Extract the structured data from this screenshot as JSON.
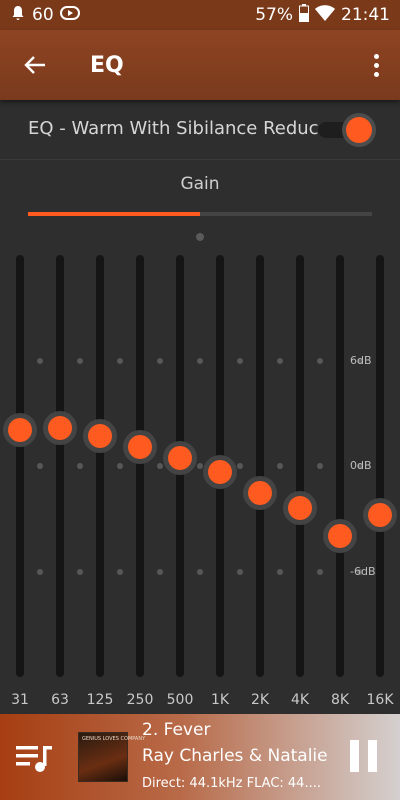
{
  "status_bar": {
    "notification_count": "60",
    "battery": "57%",
    "time": "21:41"
  },
  "app_bar": {
    "title": "EQ",
    "back_icon": "arrow-left-icon",
    "menu_icon": "more-vert-icon"
  },
  "preset": {
    "name": "EQ - Warm With Sibilance Reduct",
    "enabled": true
  },
  "tab": {
    "label": "Gain",
    "progress": 0.5
  },
  "eq": {
    "db_labels": [
      "6dB",
      "0dB",
      "-6dB"
    ],
    "bands": [
      {
        "freq": "31",
        "level": 0.415
      },
      {
        "freq": "63",
        "level": 0.41
      },
      {
        "freq": "125",
        "level": 0.43
      },
      {
        "freq": "250",
        "level": 0.455
      },
      {
        "freq": "500",
        "level": 0.48
      },
      {
        "freq": "1K",
        "level": 0.515
      },
      {
        "freq": "2K",
        "level": 0.565
      },
      {
        "freq": "4K",
        "level": 0.6
      },
      {
        "freq": "8K",
        "level": 0.665
      },
      {
        "freq": "16K",
        "level": 0.615
      }
    ]
  },
  "now_playing": {
    "title": "2. Fever",
    "artist": "Ray Charles & Natalie",
    "format": "Direct: 44.1kHz  FLAC: 44....",
    "album_art_text": "GENIUS LOVES COMPANY",
    "accent": "#ff5a1f"
  }
}
